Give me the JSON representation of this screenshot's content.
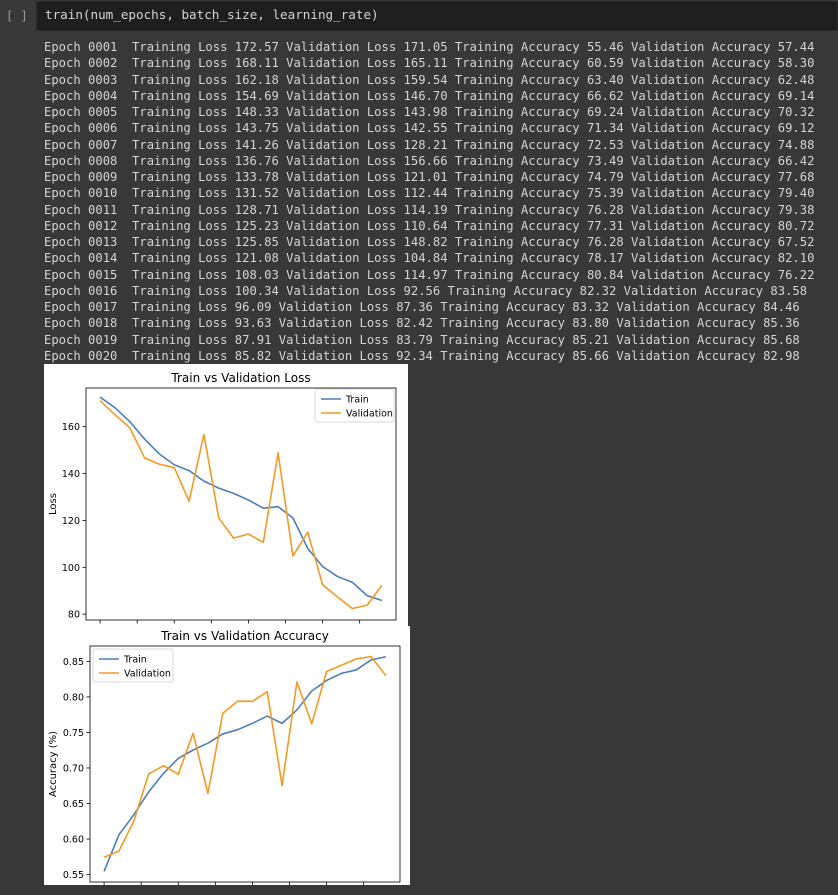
{
  "cell": {
    "bracket": "[ ]",
    "code": "train(num_epochs, batch_size, learning_rate)"
  },
  "log_lines": [
    "Epoch 0001  Training Loss 172.57 Validation Loss 171.05 Training Accuracy 55.46 Validation Accuracy 57.44",
    "Epoch 0002  Training Loss 168.11 Validation Loss 165.11 Training Accuracy 60.59 Validation Accuracy 58.30",
    "Epoch 0003  Training Loss 162.18 Validation Loss 159.54 Training Accuracy 63.40 Validation Accuracy 62.48",
    "Epoch 0004  Training Loss 154.69 Validation Loss 146.70 Training Accuracy 66.62 Validation Accuracy 69.14",
    "Epoch 0005  Training Loss 148.33 Validation Loss 143.98 Training Accuracy 69.24 Validation Accuracy 70.32",
    "Epoch 0006  Training Loss 143.75 Validation Loss 142.55 Training Accuracy 71.34 Validation Accuracy 69.12",
    "Epoch 0007  Training Loss 141.26 Validation Loss 128.21 Training Accuracy 72.53 Validation Accuracy 74.88",
    "Epoch 0008  Training Loss 136.76 Validation Loss 156.66 Training Accuracy 73.49 Validation Accuracy 66.42",
    "Epoch 0009  Training Loss 133.78 Validation Loss 121.01 Training Accuracy 74.79 Validation Accuracy 77.68",
    "Epoch 0010  Training Loss 131.52 Validation Loss 112.44 Training Accuracy 75.39 Validation Accuracy 79.40",
    "Epoch 0011  Training Loss 128.71 Validation Loss 114.19 Training Accuracy 76.28 Validation Accuracy 79.38",
    "Epoch 0012  Training Loss 125.23 Validation Loss 110.64 Training Accuracy 77.31 Validation Accuracy 80.72",
    "Epoch 0013  Training Loss 125.85 Validation Loss 148.82 Training Accuracy 76.28 Validation Accuracy 67.52",
    "Epoch 0014  Training Loss 121.08 Validation Loss 104.84 Training Accuracy 78.17 Validation Accuracy 82.10",
    "Epoch 0015  Training Loss 108.03 Validation Loss 114.97 Training Accuracy 80.84 Validation Accuracy 76.22",
    "Epoch 0016  Training Loss 100.34 Validation Loss 92.56 Training Accuracy 82.32 Validation Accuracy 83.58",
    "Epoch 0017  Training Loss 96.09 Validation Loss 87.36 Training Accuracy 83.32 Validation Accuracy 84.46",
    "Epoch 0018  Training Loss 93.63 Validation Loss 82.42 Training Accuracy 83.80 Validation Accuracy 85.36",
    "Epoch 0019  Training Loss 87.91 Validation Loss 83.79 Training Accuracy 85.21 Validation Accuracy 85.68",
    "Epoch 0020  Training Loss 85.82 Validation Loss 92.34 Training Accuracy 85.66 Validation Accuracy 82.98"
  ],
  "colors": {
    "train": "#4c7fb8",
    "validation": "#f39a25"
  },
  "chart_data": [
    {
      "type": "line",
      "title": "Train vs Validation Loss",
      "xlabel": "Epoch",
      "ylabel": "Loss",
      "x": [
        0,
        1,
        2,
        3,
        4,
        5,
        6,
        7,
        8,
        9,
        10,
        11,
        12,
        13,
        14,
        15,
        16,
        17,
        18,
        19
      ],
      "xlim": [
        -0.95,
        19.95
      ],
      "ylim": [
        77.5,
        176.5
      ],
      "xticks": [
        0.0,
        2.5,
        5.0,
        7.5,
        10.0,
        12.5,
        15.0,
        17.5
      ],
      "xtick_labels": [
        "0.0",
        "2.5",
        "5.0",
        "7.5",
        "10.0",
        "12.5",
        "15.0",
        "17.5"
      ],
      "yticks": [
        80,
        100,
        120,
        140,
        160
      ],
      "ytick_labels": [
        "80",
        "100",
        "120",
        "140",
        "160"
      ],
      "legend": "top-right",
      "series": [
        {
          "name": "Train",
          "values": [
            172.57,
            168.11,
            162.18,
            154.69,
            148.33,
            143.75,
            141.26,
            136.76,
            133.78,
            131.52,
            128.71,
            125.23,
            125.85,
            121.08,
            108.03,
            100.34,
            96.09,
            93.63,
            87.91,
            85.82
          ]
        },
        {
          "name": "Validation",
          "values": [
            171.05,
            165.11,
            159.54,
            146.7,
            143.98,
            142.55,
            128.21,
            156.66,
            121.01,
            112.44,
            114.19,
            110.64,
            148.82,
            104.84,
            114.97,
            92.56,
            87.36,
            82.42,
            83.79,
            92.34
          ]
        }
      ]
    },
    {
      "type": "line",
      "title": "Train vs Validation Accuracy",
      "xlabel": "Epoch",
      "ylabel": "Accuracy (%)",
      "x": [
        0,
        1,
        2,
        3,
        4,
        5,
        6,
        7,
        8,
        9,
        10,
        11,
        12,
        13,
        14,
        15,
        16,
        17,
        18,
        19
      ],
      "xlim": [
        -0.95,
        19.95
      ],
      "ylim": [
        0.5395,
        0.8717
      ],
      "xticks": [
        0.0,
        2.5,
        5.0,
        7.5,
        10.0,
        12.5,
        15.0,
        17.5
      ],
      "xtick_labels": [
        "0.0",
        "2.5",
        "5.0",
        "7.5",
        "10.0",
        "12.5",
        "15.0",
        "17.5"
      ],
      "yticks": [
        0.55,
        0.6,
        0.65,
        0.7,
        0.75,
        0.8,
        0.85
      ],
      "ytick_labels": [
        "0.55",
        "0.60",
        "0.65",
        "0.70",
        "0.75",
        "0.80",
        "0.85"
      ],
      "legend": "top-left",
      "series": [
        {
          "name": "Train",
          "values": [
            0.5546,
            0.6059,
            0.634,
            0.6662,
            0.6924,
            0.7134,
            0.7253,
            0.7349,
            0.7479,
            0.7539,
            0.7628,
            0.7731,
            0.7628,
            0.7817,
            0.8084,
            0.8232,
            0.8332,
            0.838,
            0.8521,
            0.8566
          ]
        },
        {
          "name": "Validation",
          "values": [
            0.5744,
            0.583,
            0.6248,
            0.6914,
            0.7032,
            0.6912,
            0.7488,
            0.6642,
            0.7768,
            0.794,
            0.7938,
            0.8072,
            0.6752,
            0.821,
            0.7622,
            0.8358,
            0.8446,
            0.8536,
            0.8568,
            0.8298
          ]
        }
      ]
    }
  ]
}
